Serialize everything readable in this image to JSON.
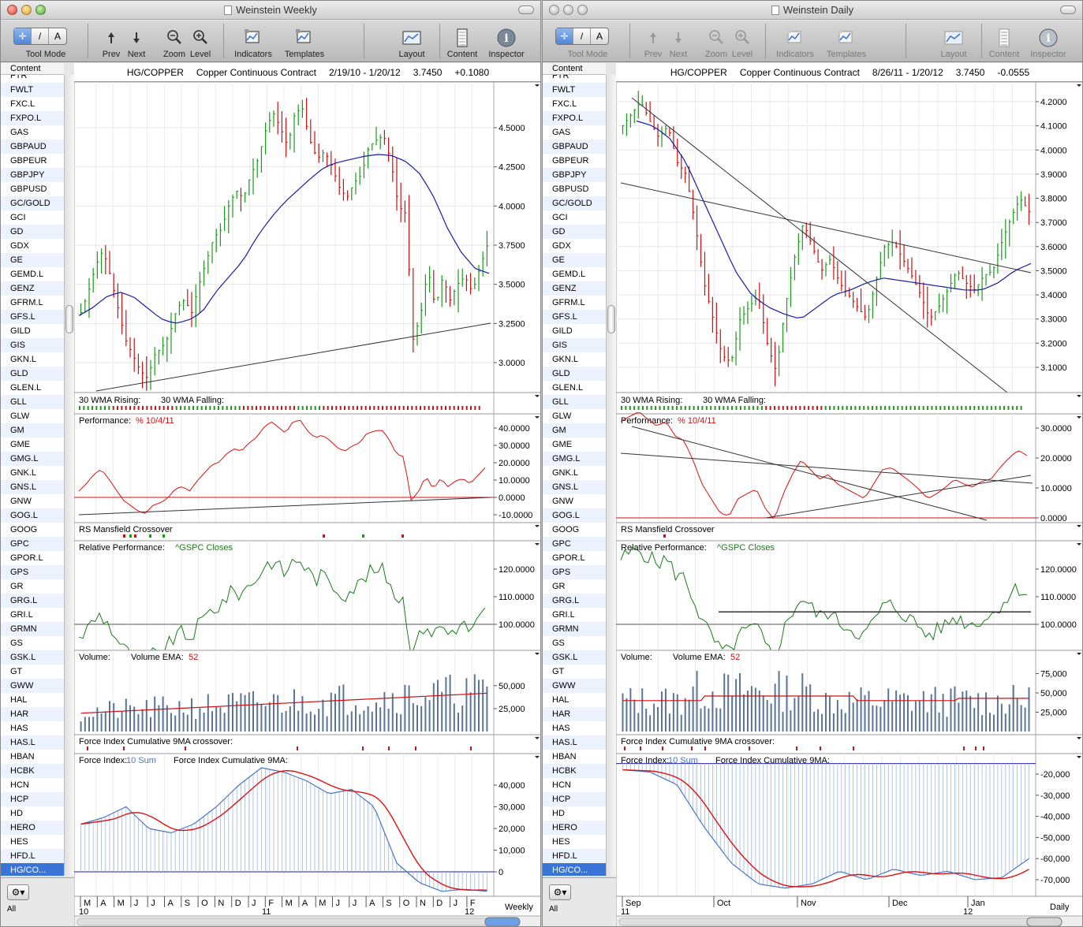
{
  "windows": [
    {
      "id": "w1",
      "title": "Weinstein Weekly",
      "active": true,
      "toolbar": {
        "tool_mode": "Tool Mode",
        "prev": "Prev",
        "next": "Next",
        "zoom": "Zoom",
        "level": "Level",
        "indicators": "Indicators",
        "templates": "Templates",
        "layout": "Layout",
        "content": "Content",
        "inspector": "Inspector",
        "tool_buttons": [
          "✛",
          "/",
          "A"
        ]
      },
      "content_header": "Content",
      "bottom_label": "All",
      "chart_header": {
        "symbol": "HG/COPPER",
        "name": "Copper Continuous Contract",
        "range": "2/19/10 - 1/20/12",
        "price": "3.7450",
        "change": "+0.1080"
      },
      "panel_titles": {
        "wma": "30 WMA Rising:",
        "wma_fall": "30 WMA Falling:",
        "perf": "Performance:",
        "perf_ref": "% 10/4/11",
        "rs": "RS Mansfield Crossover",
        "relperf": "Relative Performance:",
        "relperf_ref": "^GSPC Closes",
        "vol": "Volume:",
        "vol_ema": "Volume EMA:",
        "vol_ema_n": "52",
        "fic": "Force Index Cumulative 9MA crossover:",
        "fi": "Force Index:",
        "fi_sum": "10 Sum",
        "fi_cum": "Force Index Cumulative 9MA:"
      },
      "price_ticks": [
        "4.5000",
        "4.2500",
        "4.0000",
        "3.7500",
        "3.5000",
        "3.2500",
        "3.0000"
      ],
      "perf_ticks": [
        "40.0000",
        "30.0000",
        "20.0000",
        "10.0000",
        "0.0000",
        "-10.0000"
      ],
      "rel_ticks": [
        "120.0000",
        "110.0000",
        "100.0000"
      ],
      "vol_ticks": [
        "50,000",
        "25,000"
      ],
      "fi_ticks": [
        "40,000",
        "30,000",
        "20,000",
        "10,000",
        "0"
      ],
      "time_labels": [
        "M",
        "A",
        "M",
        "J",
        "J",
        "A",
        "S",
        "O",
        "N",
        "D",
        "J",
        "F",
        "M",
        "A",
        "M",
        "J",
        "J",
        "A",
        "S",
        "O",
        "N",
        "D",
        "J",
        "F"
      ],
      "year_labels": [
        "10",
        "11",
        "12"
      ],
      "period": "Weekly"
    },
    {
      "id": "w2",
      "title": "Weinstein Daily",
      "active": false,
      "toolbar": {
        "tool_mode": "Tool Mode",
        "prev": "Prev",
        "next": "Next",
        "zoom": "Zoom",
        "level": "Level",
        "indicators": "Indicators",
        "templates": "Templates",
        "layout": "Layout",
        "content": "Content",
        "inspector": "Inspector",
        "tool_buttons": [
          "✛",
          "/",
          "A"
        ]
      },
      "content_header": "Content",
      "bottom_label": "All",
      "chart_header": {
        "symbol": "HG/COPPER",
        "name": "Copper Continuous Contract",
        "range": "8/26/11 - 1/20/12",
        "price": "3.7450",
        "change": "-0.0555"
      },
      "panel_titles": {
        "wma": "30 WMA Rising:",
        "wma_fall": "30 WMA Falling:",
        "perf": "Performance:",
        "perf_ref": "% 10/4/11",
        "rs": "RS Mansfield Crossover",
        "relperf": "Relative Performance:",
        "relperf_ref": "^GSPC Closes",
        "vol": "Volume:",
        "vol_ema": "Volume EMA:",
        "vol_ema_n": "52",
        "fic": "Force Index Cumulative 9MA crossover:",
        "fi": "Force Index:",
        "fi_sum": "10 Sum",
        "fi_cum": "Force Index Cumulative 9MA:"
      },
      "price_ticks": [
        "4.2000",
        "4.1000",
        "4.0000",
        "3.9000",
        "3.8000",
        "3.7000",
        "3.6000",
        "3.5000",
        "3.4000",
        "3.3000",
        "3.2000",
        "3.1000"
      ],
      "perf_ticks": [
        "30.0000",
        "20.0000",
        "10.0000",
        "0.0000"
      ],
      "rel_ticks": [
        "120.0000",
        "110.0000",
        "100.0000"
      ],
      "vol_ticks": [
        "75,000",
        "50,000",
        "25,000"
      ],
      "fi_ticks": [
        "-20,000",
        "-30,000",
        "-40,000",
        "-50,000",
        "-60,000",
        "-70,000"
      ],
      "time_labels": [
        "Sep",
        "Oct",
        "Nov",
        "Dec",
        "Jan"
      ],
      "year_labels": [
        "11",
        "12"
      ],
      "period": "Daily"
    }
  ],
  "sidebar_items": [
    "FTR",
    "FWLT",
    "FXC.L",
    "FXPO.L",
    "GAS",
    "GBPAUD",
    "GBPEUR",
    "GBPJPY",
    "GBPUSD",
    "GC/GOLD",
    "GCI",
    "GD",
    "GDX",
    "GE",
    "GEMD.L",
    "GENZ",
    "GFRM.L",
    "GFS.L",
    "GILD",
    "GIS",
    "GKN.L",
    "GLD",
    "GLEN.L",
    "GLL",
    "GLW",
    "GM",
    "GME",
    "GMG.L",
    "GNK.L",
    "GNS.L",
    "GNW",
    "GOG.L",
    "GOOG",
    "GPC",
    "GPOR.L",
    "GPS",
    "GR",
    "GRG.L",
    "GRI.L",
    "GRMN",
    "GS",
    "GSK.L",
    "GT",
    "GWW",
    "HAL",
    "HAR",
    "HAS",
    "HAS.L",
    "HBAN",
    "HCBK",
    "HCN",
    "HCP",
    "HD",
    "HERO",
    "HES",
    "HFD.L",
    "HG/CO..."
  ],
  "selected_item": "HG/CO...",
  "colors": {
    "up": "#1a9a1a",
    "down": "#cc1111",
    "ma": "#1a1aaa",
    "perf": "#dd1111",
    "rel": "#1a7a1a",
    "vol": "#5a7598",
    "fi": "#4a76c8",
    "fic": "#dd1111"
  },
  "chart_data": [
    {
      "type": "line",
      "title": "HG/COPPER Copper Continuous Contract (Weekly)",
      "x_range": [
        "2/19/10",
        "1/20/12"
      ],
      "series": [
        {
          "name": "HG/COPPER",
          "values": [
            3.32,
            3.45,
            3.62,
            3.72,
            3.55,
            3.35,
            3.15,
            3.05,
            2.95,
            2.9,
            3.05,
            3.1,
            3.18,
            3.35,
            3.4,
            3.32,
            3.5,
            3.65,
            3.8,
            3.85,
            4.0,
            4.1,
            4.05,
            4.2,
            4.3,
            4.48,
            4.6,
            4.5,
            4.38,
            4.6,
            4.62,
            4.42,
            4.3,
            4.35,
            4.25,
            4.12,
            4.05,
            4.15,
            4.2,
            4.38,
            4.42,
            4.45,
            4.28,
            4.0,
            3.95,
            3.15,
            3.3,
            3.6,
            3.35,
            3.55,
            3.4,
            3.5,
            3.55,
            3.45,
            3.6,
            3.745
          ]
        },
        {
          "name": "30 WMA",
          "values": [
            3.3,
            3.35,
            3.42,
            3.45,
            3.42,
            3.35,
            3.28,
            3.25,
            3.27,
            3.32,
            3.45,
            3.55,
            3.65,
            3.8,
            3.92,
            4.02,
            4.1,
            4.18,
            4.25,
            4.28,
            4.3,
            4.32,
            4.33,
            4.32,
            4.28,
            4.2,
            4.05,
            3.85,
            3.7,
            3.6,
            3.57
          ]
        }
      ]
    },
    {
      "type": "line",
      "title": "HG/COPPER Copper Continuous Contract (Daily)",
      "x_range": [
        "8/26/11",
        "1/20/12"
      ],
      "series": [
        {
          "name": "HG/COPPER",
          "values": [
            4.1,
            4.15,
            4.2,
            4.12,
            4.05,
            4.1,
            3.95,
            3.9,
            3.7,
            3.45,
            3.3,
            3.15,
            3.12,
            3.3,
            3.35,
            3.4,
            3.2,
            3.08,
            3.35,
            3.55,
            3.7,
            3.6,
            3.5,
            3.55,
            3.45,
            3.4,
            3.35,
            3.3,
            3.45,
            3.6,
            3.62,
            3.55,
            3.48,
            3.4,
            3.3,
            3.35,
            3.42,
            3.5,
            3.45,
            3.42,
            3.48,
            3.5,
            3.62,
            3.72,
            3.8,
            3.745
          ]
        },
        {
          "name": "30 WMA",
          "values": [
            4.12,
            4.1,
            4.05,
            3.95,
            3.8,
            3.65,
            3.5,
            3.4,
            3.35,
            3.32,
            3.3,
            3.35,
            3.4,
            3.42,
            3.45,
            3.47,
            3.46,
            3.45,
            3.44,
            3.43,
            3.42,
            3.42,
            3.45,
            3.5,
            3.53
          ]
        }
      ]
    }
  ]
}
